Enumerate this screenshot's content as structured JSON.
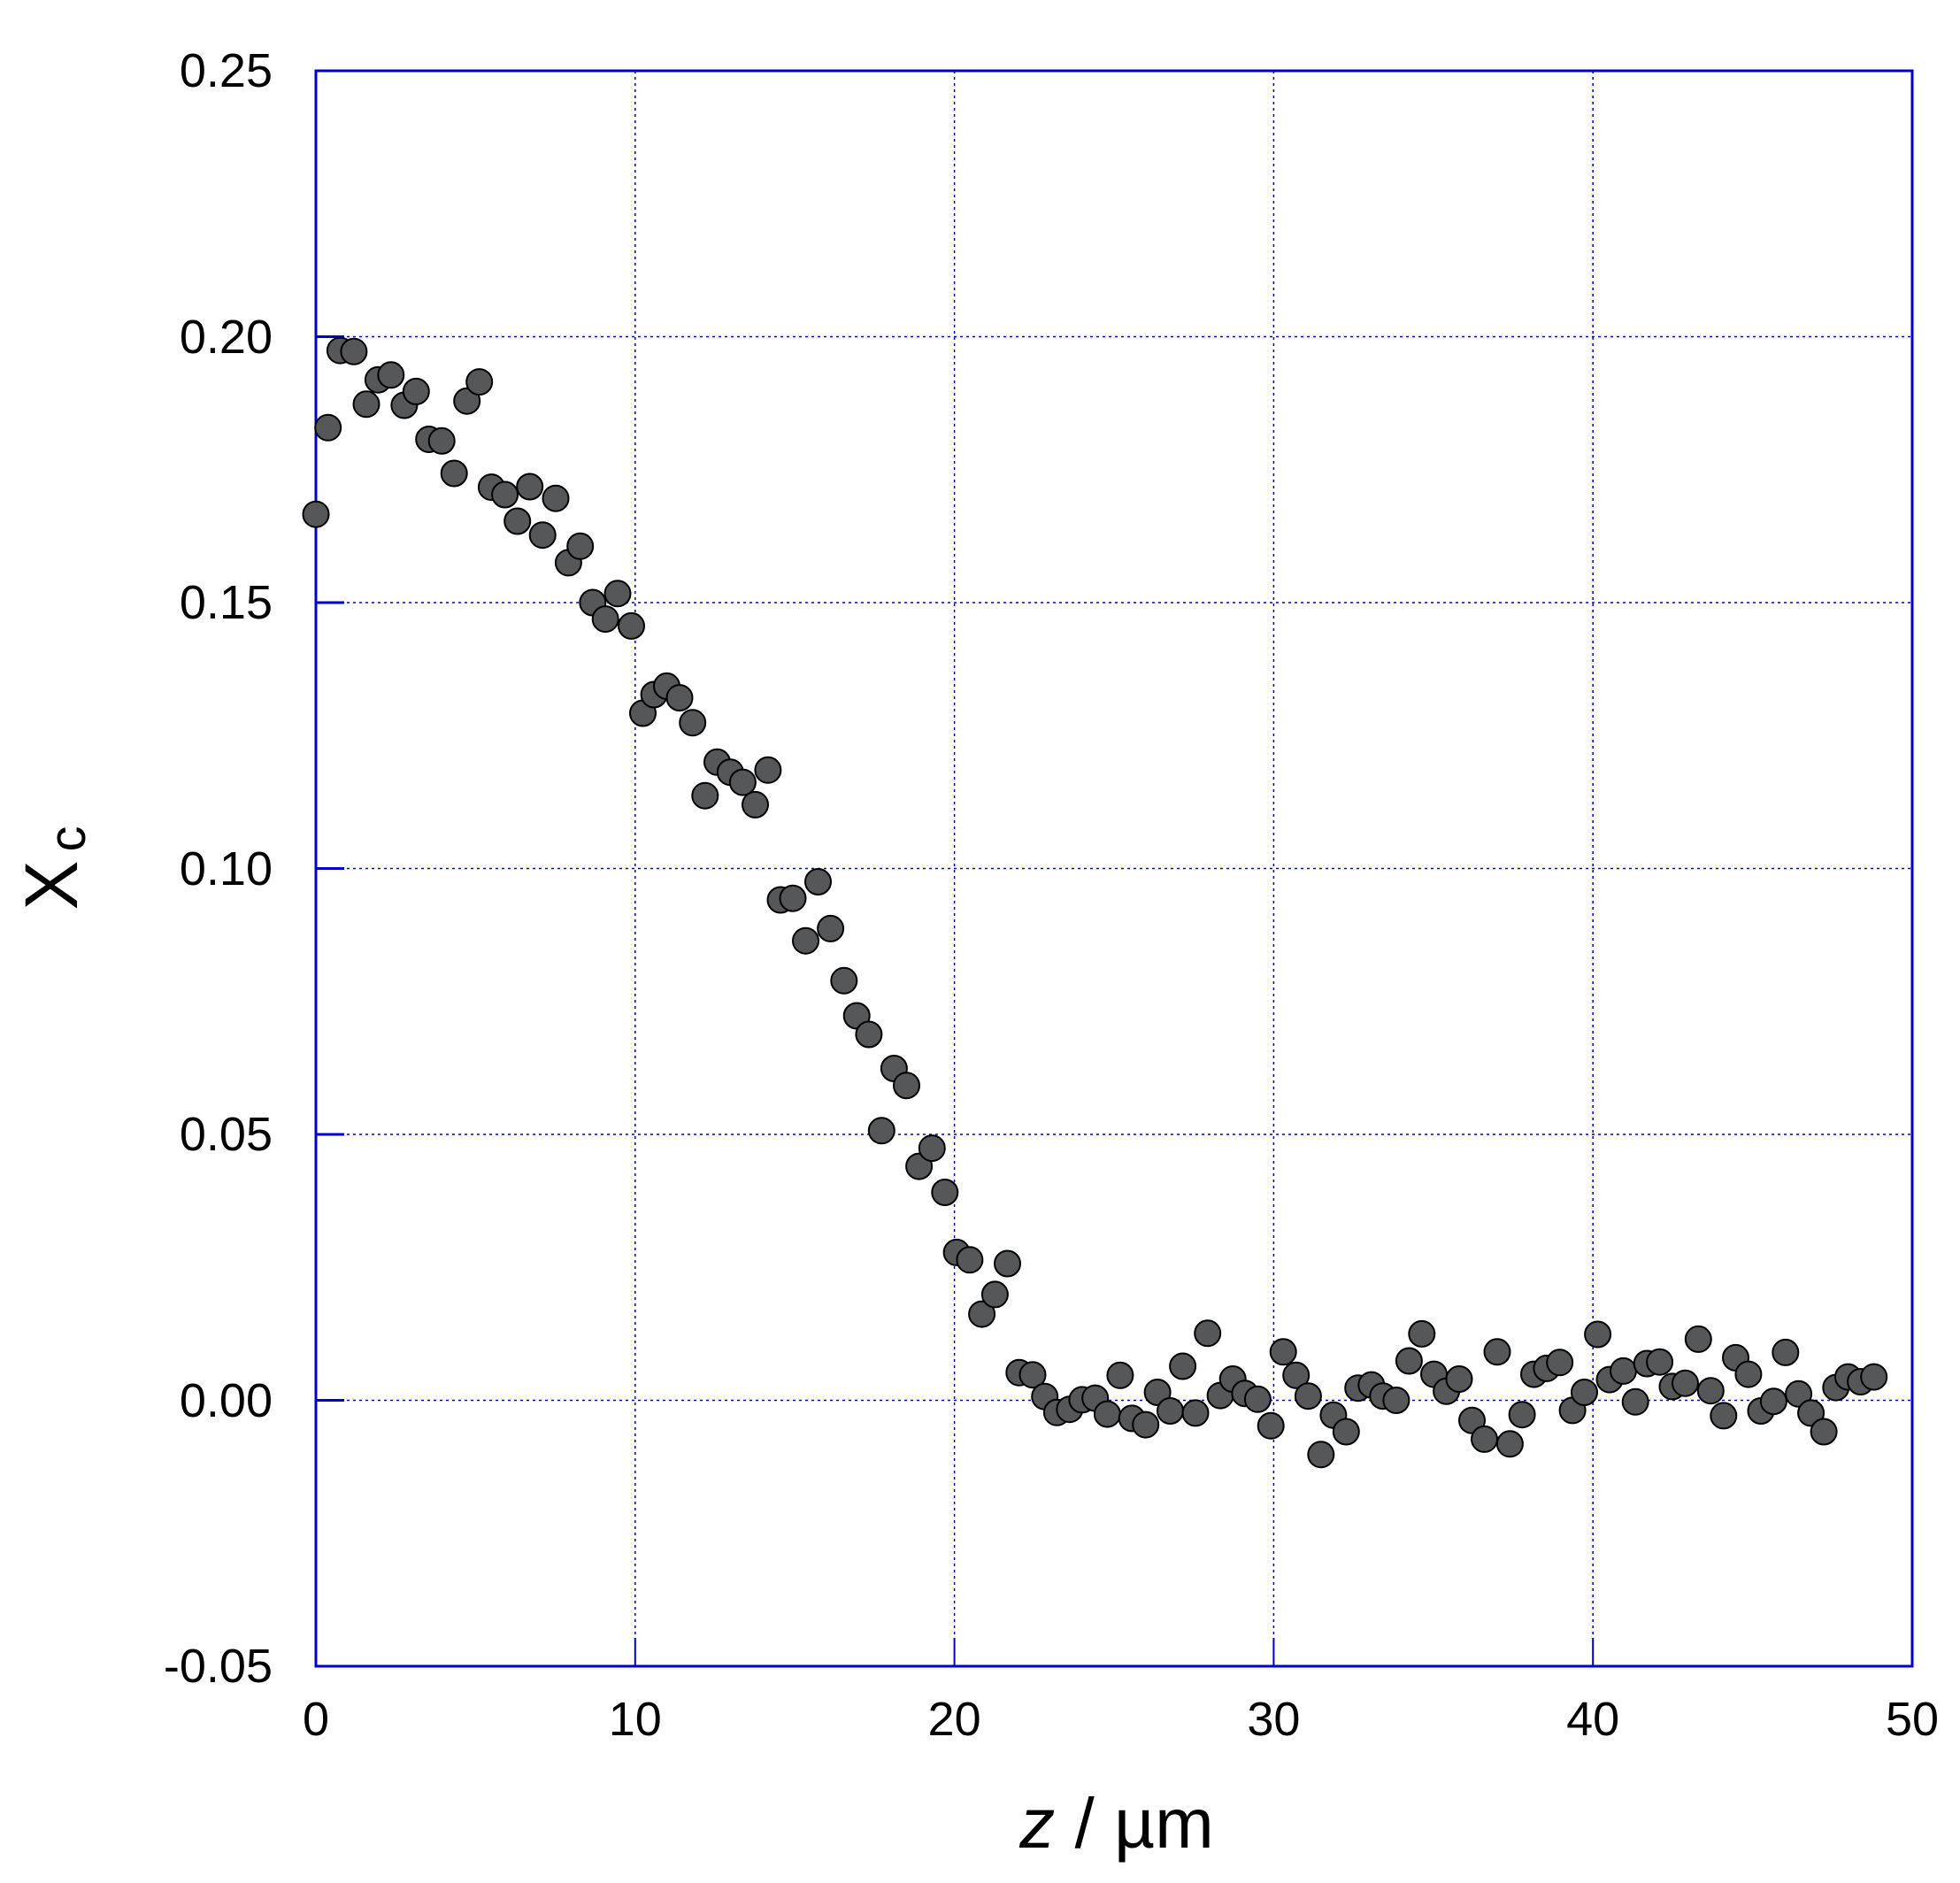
{
  "chart_data": {
    "type": "scatter",
    "title": "",
    "xlabel": "z / µm",
    "xlabel_var": "z",
    "xlabel_unit": " / µm",
    "ylabel": "X_c",
    "ylabel_main": "X",
    "ylabel_sub": "c",
    "xlim": [
      0,
      50
    ],
    "ylim": [
      -0.05,
      0.25
    ],
    "grid": true,
    "legend": null,
    "x_ticks": [
      "0",
      "10",
      "20",
      "30",
      "40",
      "50"
    ],
    "y_ticks": [
      "0.25",
      "0.20",
      "0.15",
      "0.10",
      "0.05",
      "0.00",
      "-0.05"
    ],
    "colors": {
      "marker_fill": "#555759",
      "marker_edge": "#000000",
      "axis": "#0000c8",
      "grid": "#0000c8"
    },
    "series": [
      {
        "name": "X_c",
        "x": [
          0.0,
          0.38,
          0.76,
          1.19,
          1.58,
          1.95,
          2.35,
          2.77,
          3.14,
          3.54,
          3.94,
          4.33,
          4.73,
          5.12,
          5.5,
          5.92,
          6.31,
          6.7,
          7.1,
          7.51,
          7.91,
          8.28,
          8.67,
          9.07,
          9.45,
          9.88,
          10.24,
          10.59,
          10.99,
          11.39,
          11.8,
          12.19,
          12.57,
          12.98,
          13.37,
          13.76,
          14.16,
          14.55,
          14.94,
          15.34,
          15.73,
          16.12,
          16.54,
          16.94,
          17.32,
          17.72,
          18.11,
          18.5,
          18.89,
          19.3,
          19.7,
          20.07,
          20.48,
          20.86,
          21.27,
          21.66,
          22.03,
          22.45,
          22.83,
          23.21,
          23.61,
          24.0,
          24.41,
          24.79,
          25.19,
          25.56,
          25.99,
          26.36,
          26.76,
          27.15,
          27.55,
          27.93,
          28.33,
          28.72,
          29.1,
          29.5,
          29.91,
          30.3,
          30.7,
          31.08,
          31.48,
          31.87,
          32.27,
          32.64,
          33.06,
          33.42,
          33.84,
          34.24,
          34.64,
          35.02,
          35.41,
          35.81,
          36.21,
          36.6,
          37.0,
          37.4,
          37.78,
          38.15,
          38.55,
          38.96,
          39.36,
          39.73,
          40.15,
          40.52,
          40.95,
          41.33,
          41.69,
          42.09,
          42.49,
          42.89,
          43.3,
          43.69,
          44.09,
          44.47,
          44.87,
          45.26,
          45.66,
          46.03,
          46.44,
          46.83,
          47.23,
          47.61,
          47.99,
          48.38,
          48.8
        ],
        "y": [
          0.1666,
          0.1829,
          0.1974,
          0.1972,
          0.1873,
          0.1919,
          0.1928,
          0.1871,
          0.1897,
          0.1807,
          0.1804,
          0.1743,
          0.1879,
          0.1915,
          0.1717,
          0.1703,
          0.1653,
          0.1718,
          0.1627,
          0.1696,
          0.1575,
          0.1606,
          0.15,
          0.1469,
          0.1517,
          0.1456,
          0.1292,
          0.1327,
          0.1343,
          0.1321,
          0.1274,
          0.1137,
          0.12,
          0.1181,
          0.1162,
          0.112,
          0.1185,
          0.0941,
          0.0944,
          0.0864,
          0.0975,
          0.0887,
          0.0789,
          0.0723,
          0.0688,
          0.0507,
          0.0624,
          0.0592,
          0.044,
          0.0474,
          0.0391,
          0.0278,
          0.0264,
          0.0162,
          0.0199,
          0.0257,
          0.0052,
          0.0048,
          0.0007,
          -0.0023,
          -0.0017,
          0.0001,
          0.0004,
          -0.0026,
          0.0047,
          -0.0034,
          -0.0046,
          0.0015,
          -0.002,
          0.0064,
          -0.0024,
          0.0126,
          0.0009,
          0.004,
          0.0013,
          0.0002,
          -0.0048,
          0.0091,
          0.0047,
          0.0008,
          -0.0102,
          -0.0028,
          -0.0059,
          0.0023,
          0.0029,
          0.0008,
          0.0,
          0.0074,
          0.0125,
          0.0049,
          0.0017,
          0.004,
          -0.0038,
          -0.0073,
          0.0091,
          -0.0082,
          -0.0027,
          0.0049,
          0.006,
          0.0071,
          -0.0019,
          0.0015,
          0.0124,
          0.0039,
          0.0055,
          -0.0003,
          0.0069,
          0.0072,
          0.0026,
          0.0032,
          0.0115,
          0.0018,
          -0.0029,
          0.008,
          0.0049,
          -0.002,
          -0.0002,
          0.009,
          0.0012,
          -0.0024,
          -0.0059,
          0.0024,
          0.0044,
          0.0035,
          0.0044
        ]
      }
    ]
  }
}
